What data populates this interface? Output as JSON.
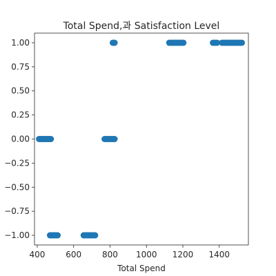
{
  "chart_data": {
    "type": "scatter",
    "title": "Total Spend,과 Satisfaction Level",
    "xlabel": "Total Spend",
    "ylabel": "",
    "xlim": [
      385,
      1560
    ],
    "ylim": [
      -1.1,
      1.1
    ],
    "x_ticks": [
      400,
      600,
      800,
      1000,
      1200,
      1400
    ],
    "x_tick_labels": [
      "400",
      "600",
      "800",
      "1000",
      "1200",
      "1400"
    ],
    "y_ticks": [
      1.0,
      0.75,
      0.5,
      0.25,
      0.0,
      -0.25,
      -0.5,
      -0.75,
      -1.0
    ],
    "y_tick_labels": [
      "1.00",
      "0.75",
      "0.50",
      "0.25",
      "0.00",
      "−0.25",
      "−0.50",
      "−0.75",
      "−1.00"
    ],
    "grid": false,
    "marker_color": "#1f77b4",
    "series": [
      {
        "points": [
          [
            410,
            0
          ],
          [
            416,
            0
          ],
          [
            422,
            0
          ],
          [
            428,
            0
          ],
          [
            434,
            0
          ],
          [
            440,
            0
          ],
          [
            446,
            0
          ],
          [
            452,
            0
          ],
          [
            458,
            0
          ],
          [
            464,
            0
          ],
          [
            470,
            0
          ],
          [
            475,
            0
          ],
          [
            470,
            -1
          ],
          [
            476,
            -1
          ],
          [
            482,
            -1
          ],
          [
            488,
            -1
          ],
          [
            494,
            -1
          ],
          [
            500,
            -1
          ],
          [
            506,
            -1
          ],
          [
            512,
            -1
          ],
          [
            655,
            -1
          ],
          [
            662,
            -1
          ],
          [
            670,
            -1
          ],
          [
            678,
            -1
          ],
          [
            686,
            -1
          ],
          [
            694,
            -1
          ],
          [
            702,
            -1
          ],
          [
            710,
            -1
          ],
          [
            718,
            -1
          ],
          [
            770,
            0
          ],
          [
            778,
            0
          ],
          [
            786,
            0
          ],
          [
            794,
            0
          ],
          [
            802,
            0
          ],
          [
            810,
            0
          ],
          [
            818,
            0
          ],
          [
            825,
            0
          ],
          [
            815,
            1
          ],
          [
            820,
            1
          ],
          [
            825,
            1
          ],
          [
            1125,
            1
          ],
          [
            1132,
            1
          ],
          [
            1140,
            1
          ],
          [
            1148,
            1
          ],
          [
            1156,
            1
          ],
          [
            1164,
            1
          ],
          [
            1172,
            1
          ],
          [
            1180,
            1
          ],
          [
            1188,
            1
          ],
          [
            1196,
            1
          ],
          [
            1203,
            1
          ],
          [
            1365,
            1
          ],
          [
            1372,
            1
          ],
          [
            1380,
            1
          ],
          [
            1388,
            1
          ],
          [
            1415,
            1
          ],
          [
            1422,
            1
          ],
          [
            1430,
            1
          ],
          [
            1438,
            1
          ],
          [
            1446,
            1
          ],
          [
            1454,
            1
          ],
          [
            1462,
            1
          ],
          [
            1470,
            1
          ],
          [
            1478,
            1
          ],
          [
            1486,
            1
          ],
          [
            1494,
            1
          ],
          [
            1502,
            1
          ],
          [
            1510,
            1
          ],
          [
            1518,
            1
          ],
          [
            1524,
            1
          ]
        ]
      }
    ]
  }
}
